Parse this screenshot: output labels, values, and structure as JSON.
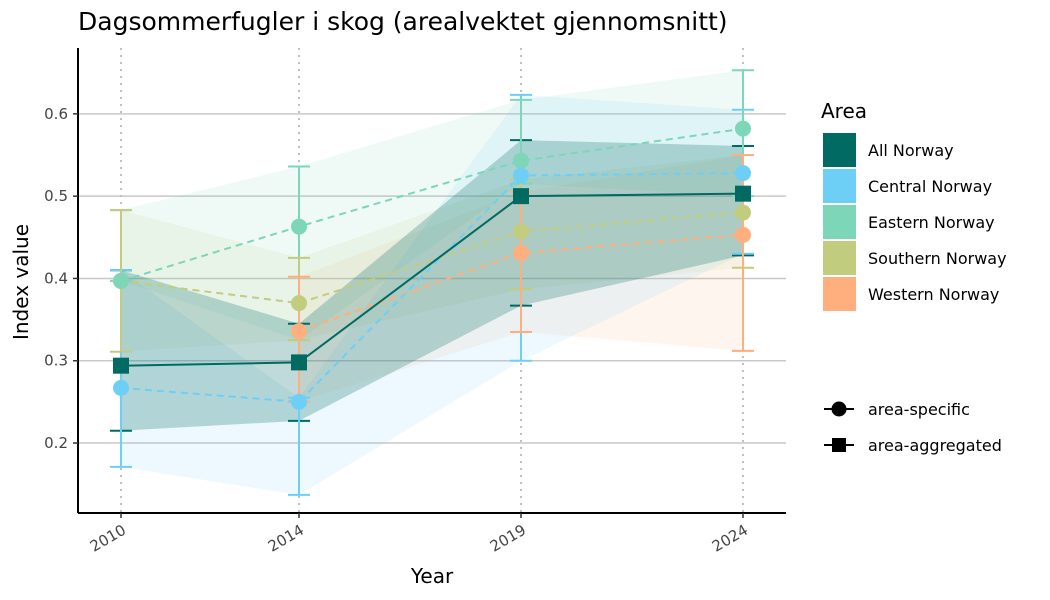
{
  "chart_data": {
    "type": "line",
    "title": "Dagsommerfugler i skog (arealvektet gjennomsnitt)",
    "xlabel": "Year",
    "ylabel": "Index value",
    "x": [
      "2010",
      "2014",
      "2019",
      "2024"
    ],
    "ylim": [
      0.115,
      0.68
    ],
    "yticks": [
      0.2,
      0.3,
      0.4,
      0.5,
      0.6
    ],
    "ytick_labels": [
      "0.2",
      "0.3",
      "0.4",
      "0.5",
      "0.6"
    ],
    "grid": true,
    "legend_title": "Area",
    "series": [
      {
        "name": "All Norway",
        "color": "#006A63",
        "shape": "area-aggregated",
        "linestyle": "solid",
        "values": [
          0.294,
          0.298,
          0.5,
          0.503
        ],
        "lower": [
          0.215,
          0.227,
          0.367,
          0.428
        ],
        "upper": [
          0.41,
          0.345,
          0.568,
          0.561
        ]
      },
      {
        "name": "Central Norway",
        "color": "#6ECFF6",
        "shape": "area-specific",
        "linestyle": "dashed",
        "values": [
          0.267,
          0.25,
          0.525,
          0.528
        ],
        "lower": [
          0.171,
          0.137,
          0.3,
          0.43
        ],
        "upper": [
          0.41,
          0.255,
          0.623,
          0.605
        ]
      },
      {
        "name": "Eastern Norway",
        "color": "#7DD6B8",
        "shape": "area-specific",
        "linestyle": "dashed",
        "values": [
          0.397,
          0.463,
          0.543,
          0.582
        ],
        "lower": [
          0.397,
          0.325,
          0.515,
          0.5
        ],
        "upper": [
          0.483,
          0.536,
          0.617,
          0.653
        ]
      },
      {
        "name": "Southern Norway",
        "color": "#C2CC7F",
        "shape": "area-specific",
        "linestyle": "dashed",
        "values": [
          0.397,
          0.37,
          0.457,
          0.48
        ],
        "lower": [
          0.311,
          0.325,
          0.387,
          0.413
        ],
        "upper": [
          0.483,
          0.425,
          0.52,
          0.55
        ]
      },
      {
        "name": "Western Norway",
        "color": "#FFAE7E",
        "shape": "area-specific",
        "linestyle": "dashed",
        "values": [
          null,
          0.336,
          0.431,
          0.453
        ],
        "lower": [
          null,
          0.25,
          0.335,
          0.312
        ],
        "upper": [
          null,
          0.402,
          0.505,
          0.55
        ]
      }
    ],
    "shape_legend": [
      {
        "label": "area-specific",
        "shape": "circle"
      },
      {
        "label": "area-aggregated",
        "shape": "square"
      }
    ]
  }
}
